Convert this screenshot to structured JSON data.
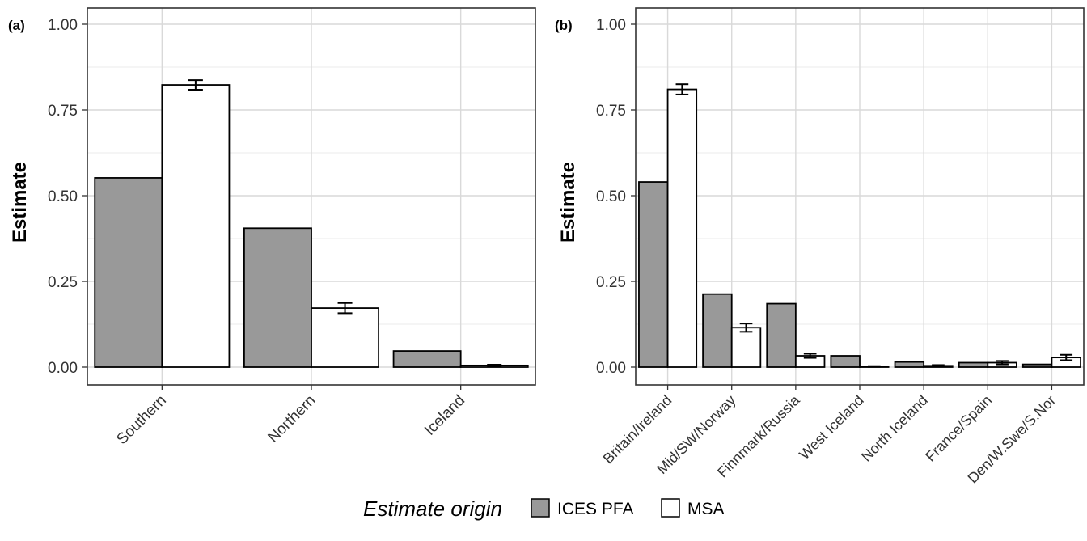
{
  "legend": {
    "title": "Estimate origin",
    "items": [
      {
        "label": "ICES PFA",
        "color": "#999999"
      },
      {
        "label": "MSA",
        "color": "#ffffff"
      }
    ]
  },
  "chart_data": [
    {
      "type": "bar",
      "panel_label": "(a)",
      "xlabel": "",
      "ylabel": "Estimate",
      "ylim": [
        0,
        1
      ],
      "yticks": [
        "0.00",
        "0.25",
        "0.50",
        "0.75",
        "1.00"
      ],
      "categories": [
        "Southern",
        "Northern",
        "Iceland"
      ],
      "series": [
        {
          "name": "ICES PFA",
          "color": "#999999",
          "values": [
            0.552,
            0.405,
            0.047
          ]
        },
        {
          "name": "MSA",
          "color": "#ffffff",
          "values": [
            0.823,
            0.172,
            0.005
          ],
          "error": [
            0.014,
            0.015,
            0.002
          ]
        }
      ],
      "grid": true
    },
    {
      "type": "bar",
      "panel_label": "(b)",
      "xlabel": "",
      "ylabel": "Estimate",
      "ylim": [
        0,
        1
      ],
      "yticks": [
        "0.00",
        "0.25",
        "0.50",
        "0.75",
        "1.00"
      ],
      "categories": [
        "Britain/Ireland",
        "Mid/SW/Norway",
        "Finnmark/Russia",
        "West Iceland",
        "North Iceland",
        "France/Spain",
        "Den/W.Swe/S.Nor"
      ],
      "series": [
        {
          "name": "ICES PFA",
          "color": "#999999",
          "values": [
            0.54,
            0.213,
            0.185,
            0.033,
            0.015,
            0.013,
            0.008
          ]
        },
        {
          "name": "MSA",
          "color": "#ffffff",
          "values": [
            0.81,
            0.115,
            0.033,
            0.002,
            0.004,
            0.013,
            0.028
          ],
          "error": [
            0.015,
            0.012,
            0.006,
            0.001,
            0.002,
            0.005,
            0.008
          ]
        }
      ],
      "grid": true
    }
  ]
}
